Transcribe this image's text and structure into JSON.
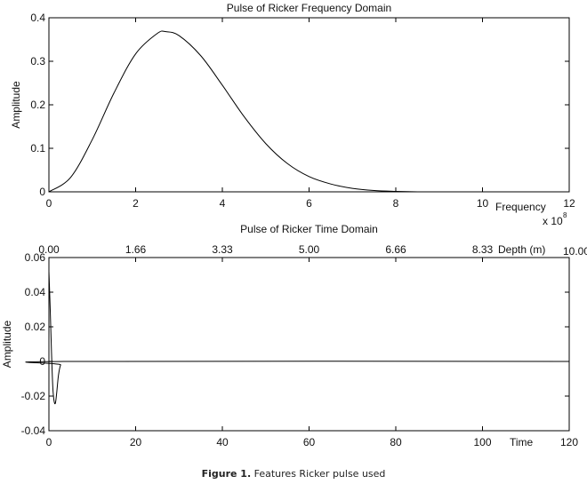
{
  "chart_data": [
    {
      "type": "line",
      "title": "Pulse of Ricker   Frequency Domain",
      "xlabel": "Frequency",
      "x_multiplier": "x 10",
      "x_multiplier_exp": "8",
      "ylabel": "Amplitude",
      "xlim": [
        0,
        12
      ],
      "ylim": [
        0,
        0.4
      ],
      "xticks": [
        0,
        2,
        4,
        6,
        8,
        10,
        12
      ],
      "yticks": [
        0,
        0.1,
        0.2,
        0.3,
        0.4
      ],
      "xtick_labels": [
        "0",
        "2",
        "4",
        "6",
        "8",
        "10",
        "12"
      ],
      "ytick_labels": [
        "0",
        "0.1",
        "0.2",
        "0.3",
        "0.4"
      ],
      "grid": false,
      "color": "#000000",
      "x": [
        0,
        0.5,
        1,
        1.5,
        2,
        2.5,
        2.7,
        3,
        3.5,
        4,
        4.5,
        5,
        5.5,
        6,
        6.5,
        7,
        7.5,
        8,
        8.5,
        9,
        10,
        11,
        12
      ],
      "y": [
        0,
        0.033,
        0.12,
        0.227,
        0.317,
        0.364,
        0.368,
        0.359,
        0.313,
        0.245,
        0.173,
        0.111,
        0.065,
        0.035,
        0.018,
        0.008,
        0.003,
        0.001,
        0,
        0,
        0,
        0,
        0
      ]
    },
    {
      "type": "line",
      "title": "Pulse of Ricker   Time Domain",
      "xlabel": "Time",
      "ylabel": "Amplitude",
      "top_xlabel": "Depth (m)",
      "xlim": [
        0,
        120
      ],
      "ylim": [
        -0.04,
        0.06
      ],
      "xticks": [
        0,
        20,
        40,
        60,
        80,
        100,
        120
      ],
      "yticks": [
        -0.04,
        -0.02,
        0,
        0.02,
        0.04,
        0.06
      ],
      "xtick_labels": [
        "0",
        "20",
        "40",
        "60",
        "80",
        "100",
        "120"
      ],
      "ytick_labels": [
        "-0.04",
        "-0.02",
        "0",
        "0.02",
        "0.04",
        "0.06"
      ],
      "top_xtick_labels": [
        "0.00",
        "1.66",
        "3.33",
        "5.00",
        "6.66",
        "8.33",
        "10.00"
      ],
      "grid": false,
      "color": "#000000",
      "x": [
        0,
        0.3,
        0.6,
        0.9,
        1.2,
        1.5,
        1.8,
        2.2,
        2.7,
        3.5,
        120
      ],
      "y": [
        0.052,
        0.03,
        0.005,
        -0.015,
        -0.023,
        -0.024,
        -0.018,
        -0.008,
        -0.002,
        0,
        0
      ]
    }
  ],
  "caption": {
    "label": "Figure 1.",
    "text": " Features Ricker pulse used"
  }
}
